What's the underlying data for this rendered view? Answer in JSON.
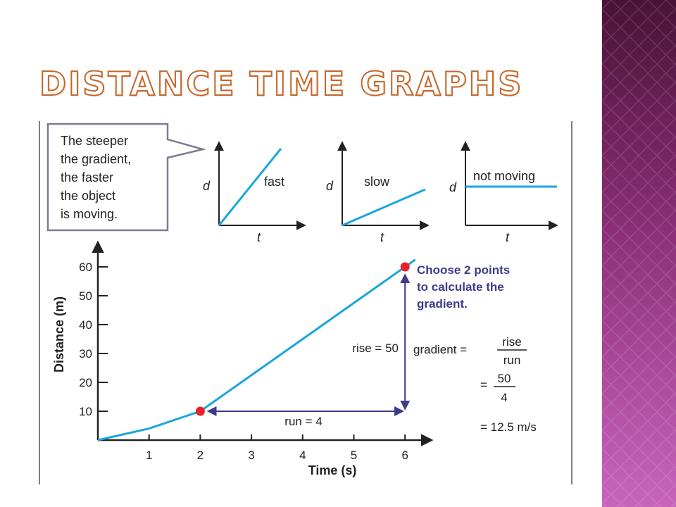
{
  "slide": {
    "title": "Distance time graphs"
  },
  "colors": {
    "title_outline": "#c4672a",
    "line": "#1aa6de",
    "point": "#e8212a",
    "arrow": "#3e3a8c",
    "callout_border": "#7b7c92",
    "axis": "#222222"
  },
  "callout": {
    "lines": [
      "The steeper",
      "the gradient,",
      "the faster",
      "the object",
      "is moving."
    ]
  },
  "mini_graphs": [
    {
      "label": "fast",
      "ylabel": "d",
      "xlabel": "t"
    },
    {
      "label": "slow",
      "ylabel": "d",
      "xlabel": "t"
    },
    {
      "label": "not moving",
      "ylabel": "d",
      "xlabel": "t"
    }
  ],
  "chart_data": {
    "type": "line",
    "xlabel": "Time (s)",
    "ylabel": "Distance (m)",
    "xlim": [
      0,
      6.5
    ],
    "ylim": [
      0,
      65
    ],
    "x_ticks": [
      1,
      2,
      3,
      4,
      5,
      6
    ],
    "y_ticks": [
      10,
      20,
      30,
      40,
      50,
      60
    ],
    "series": [
      {
        "x": [
          0,
          1,
          2,
          3,
          4,
          5,
          6,
          6.2
        ],
        "y": [
          0,
          4,
          10,
          22.5,
          35,
          47.5,
          60,
          62.5
        ]
      }
    ],
    "points": [
      {
        "x": 2,
        "y": 10
      },
      {
        "x": 6,
        "y": 60
      }
    ],
    "annotations": {
      "rise": "rise = 50",
      "run": "run = 4",
      "choose": [
        "Choose 2 points",
        "to calculate the",
        "gradient."
      ],
      "gradient_label": "gradient =",
      "frac1": {
        "num": "rise",
        "den": "run"
      },
      "frac2": {
        "num": "50",
        "den": "4"
      },
      "eq_sign": "=",
      "result": "= 12.5 m/s"
    }
  }
}
